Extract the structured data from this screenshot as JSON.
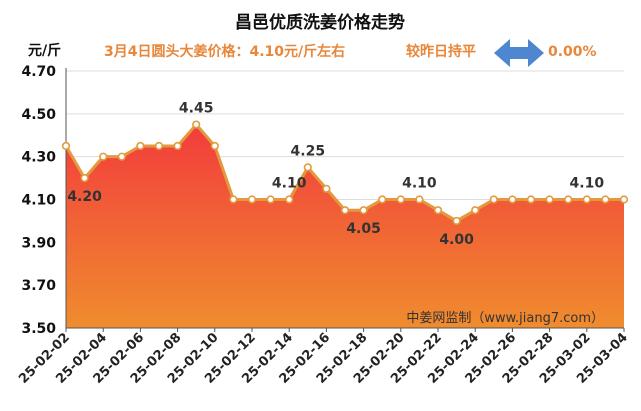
{
  "colors": {
    "accent_orange": "#E8873A",
    "line": "#E39A3E",
    "fill_top": "#F23C3C",
    "fill_bottom": "#F08C2E",
    "arrow": "#4F86D0",
    "grid": "#DDDDDD"
  },
  "header": {
    "title": "昌邑优质洗姜价格走势",
    "unit": "元/斤",
    "price_note": "3月4日圆头大姜价格：4.10元/斤左右",
    "compare_label": "较昨日持平",
    "change_pct": "0.00%",
    "credit": "中姜网监制（www.jiang7.com）"
  },
  "chart_data": {
    "type": "area",
    "title": "昌邑优质洗姜价格走势",
    "ylabel": "元/斤",
    "xlabel": "",
    "ylim": [
      3.5,
      4.7
    ],
    "yticks": [
      "3.50",
      "3.70",
      "3.90",
      "4.10",
      "4.30",
      "4.50",
      "4.70"
    ],
    "grid": "horizontal",
    "x": [
      "25-02-02",
      "25-02-03",
      "25-02-04",
      "25-02-05",
      "25-02-06",
      "25-02-07",
      "25-02-08",
      "25-02-09",
      "25-02-10",
      "25-02-11",
      "25-02-12",
      "25-02-13",
      "25-02-14",
      "25-02-15",
      "25-02-16",
      "25-02-17",
      "25-02-18",
      "25-02-19",
      "25-02-20",
      "25-02-21",
      "25-02-22",
      "25-02-23",
      "25-02-24",
      "25-02-25",
      "25-02-26",
      "25-02-27",
      "25-02-28",
      "25-03-01",
      "25-03-02",
      "25-03-03",
      "25-03-04"
    ],
    "xticks": [
      "25-02-02",
      "25-02-04",
      "25-02-06",
      "25-02-08",
      "25-02-10",
      "25-02-12",
      "25-02-14",
      "25-02-16",
      "25-02-18",
      "25-02-20",
      "25-02-22",
      "25-02-24",
      "25-02-26",
      "25-02-28",
      "25-03-02",
      "25-03-04"
    ],
    "values": [
      4.35,
      4.2,
      4.3,
      4.3,
      4.35,
      4.35,
      4.35,
      4.45,
      4.35,
      4.1,
      4.1,
      4.1,
      4.1,
      4.25,
      4.15,
      4.05,
      4.05,
      4.1,
      4.1,
      4.1,
      4.05,
      4.0,
      4.05,
      4.1,
      4.1,
      4.1,
      4.1,
      4.1,
      4.1,
      4.1,
      4.1
    ],
    "data_labels": [
      {
        "index": 1,
        "text": "4.20",
        "pos": "below"
      },
      {
        "index": 7,
        "text": "4.45",
        "pos": "above"
      },
      {
        "index": 12,
        "text": "4.10",
        "pos": "above"
      },
      {
        "index": 13,
        "text": "4.25",
        "pos": "above"
      },
      {
        "index": 16,
        "text": "4.05",
        "pos": "below"
      },
      {
        "index": 19,
        "text": "4.10",
        "pos": "above"
      },
      {
        "index": 21,
        "text": "4.00",
        "pos": "below"
      },
      {
        "index": 28,
        "text": "4.10",
        "pos": "above"
      }
    ]
  }
}
